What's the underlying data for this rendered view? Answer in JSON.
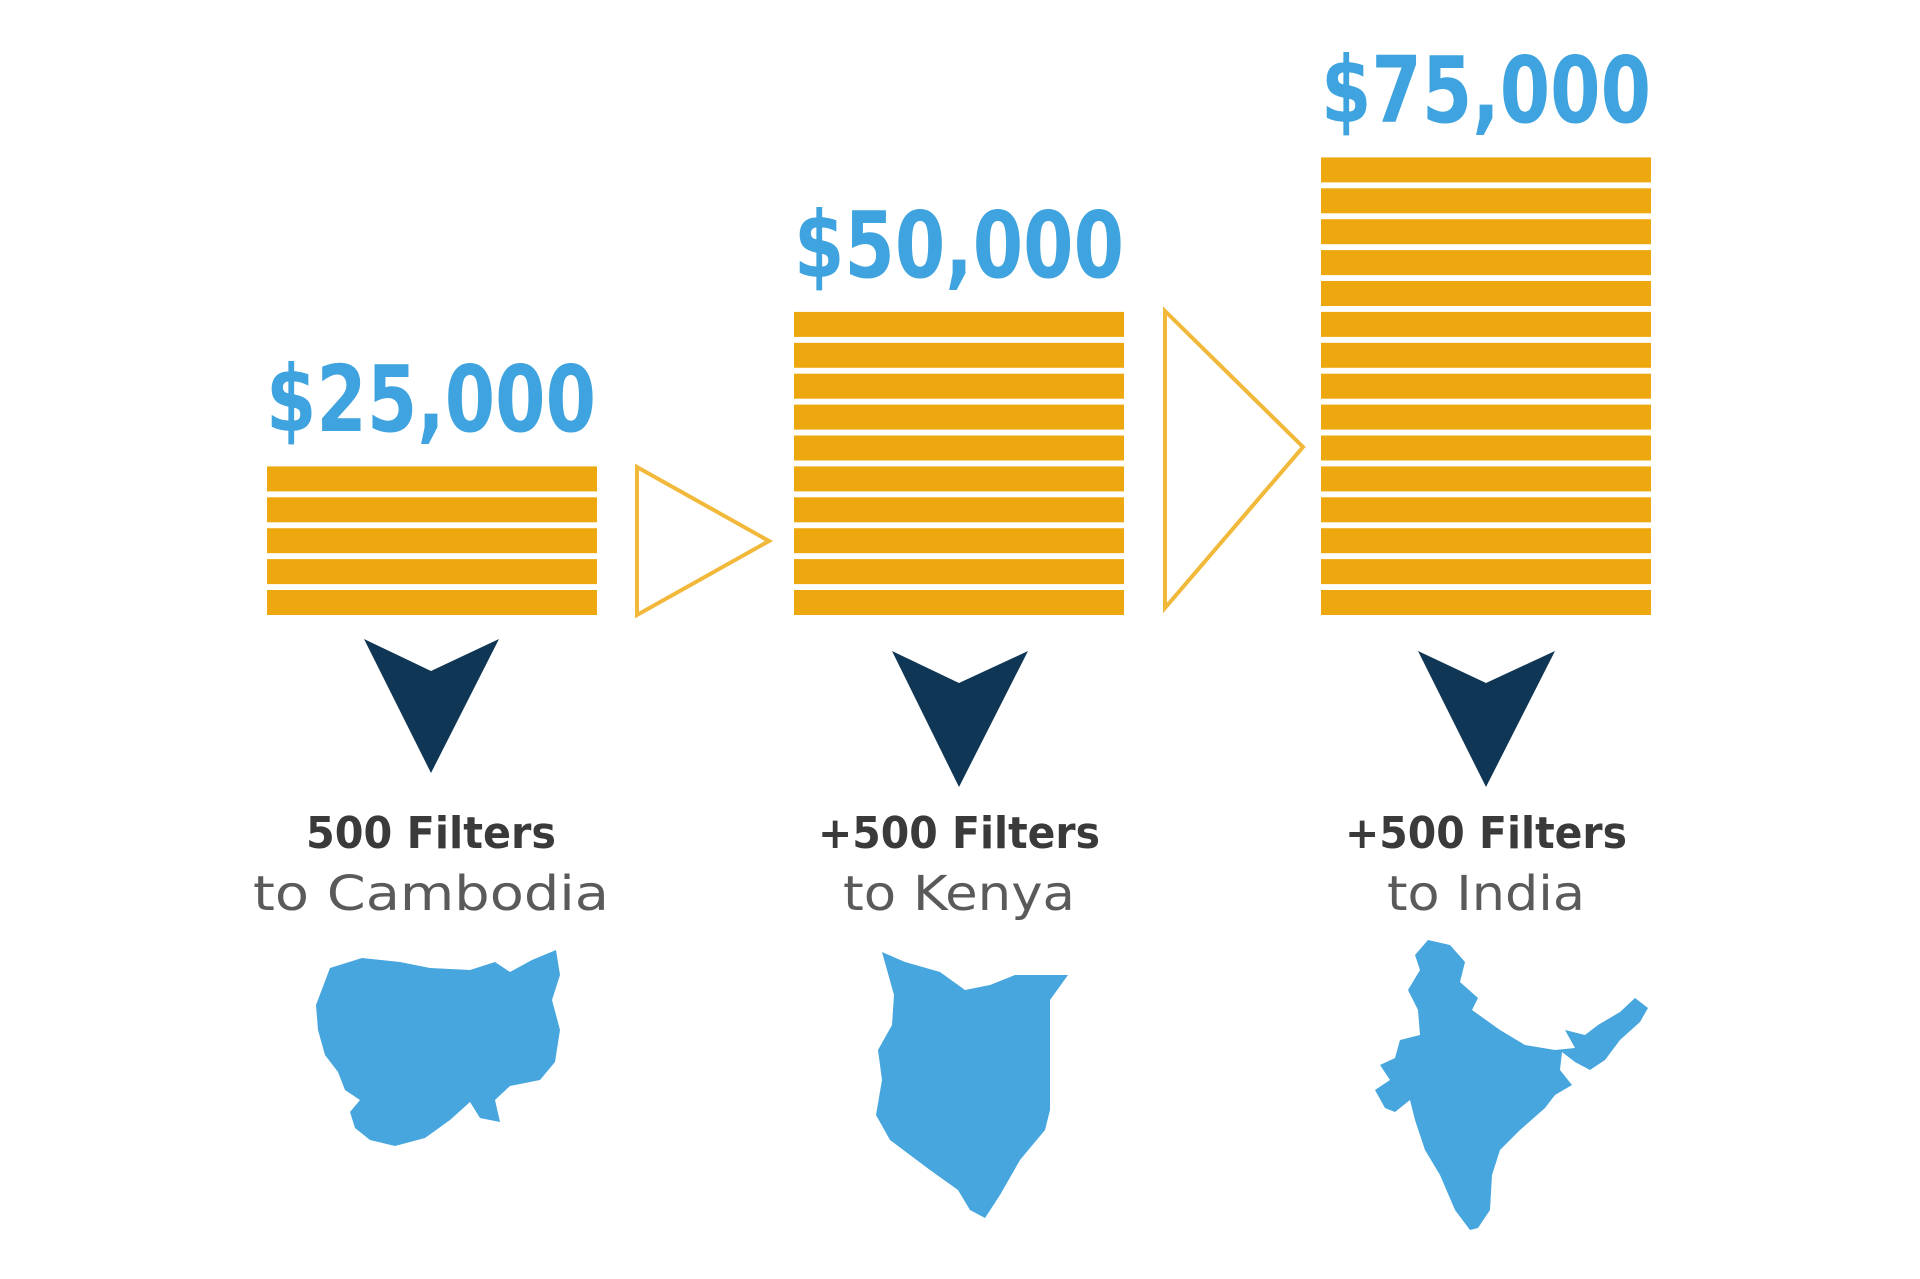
{
  "colors": {
    "value_text": "#3ea3de",
    "stack": "#eea80f",
    "stack_gap": "#fff6cf",
    "hollow_arrow": "#f1b83a",
    "down_arrow": "#0f3654",
    "title_text": "#3a3a3a",
    "sub_text": "#5a5a5a",
    "map": "#46a6dd"
  },
  "chart_data": {
    "type": "bar",
    "categories": [
      "Cambodia",
      "Kenya",
      "India"
    ],
    "values": [
      25000,
      50000,
      75000
    ],
    "value_labels": [
      "$25,000",
      "$50,000",
      "$75,000"
    ],
    "stripes": [
      5,
      10,
      15
    ]
  },
  "steps": [
    {
      "value_label": "$25,000",
      "filters": "500 Filters",
      "destination": "to Cambodia",
      "map_icon": "cambodia-map"
    },
    {
      "value_label": "$50,000",
      "filters": "+500 Filters",
      "destination": "to Kenya",
      "map_icon": "kenya-map"
    },
    {
      "value_label": "$75,000",
      "filters": "+500 Filters",
      "destination": "to India",
      "map_icon": "india-map"
    }
  ]
}
